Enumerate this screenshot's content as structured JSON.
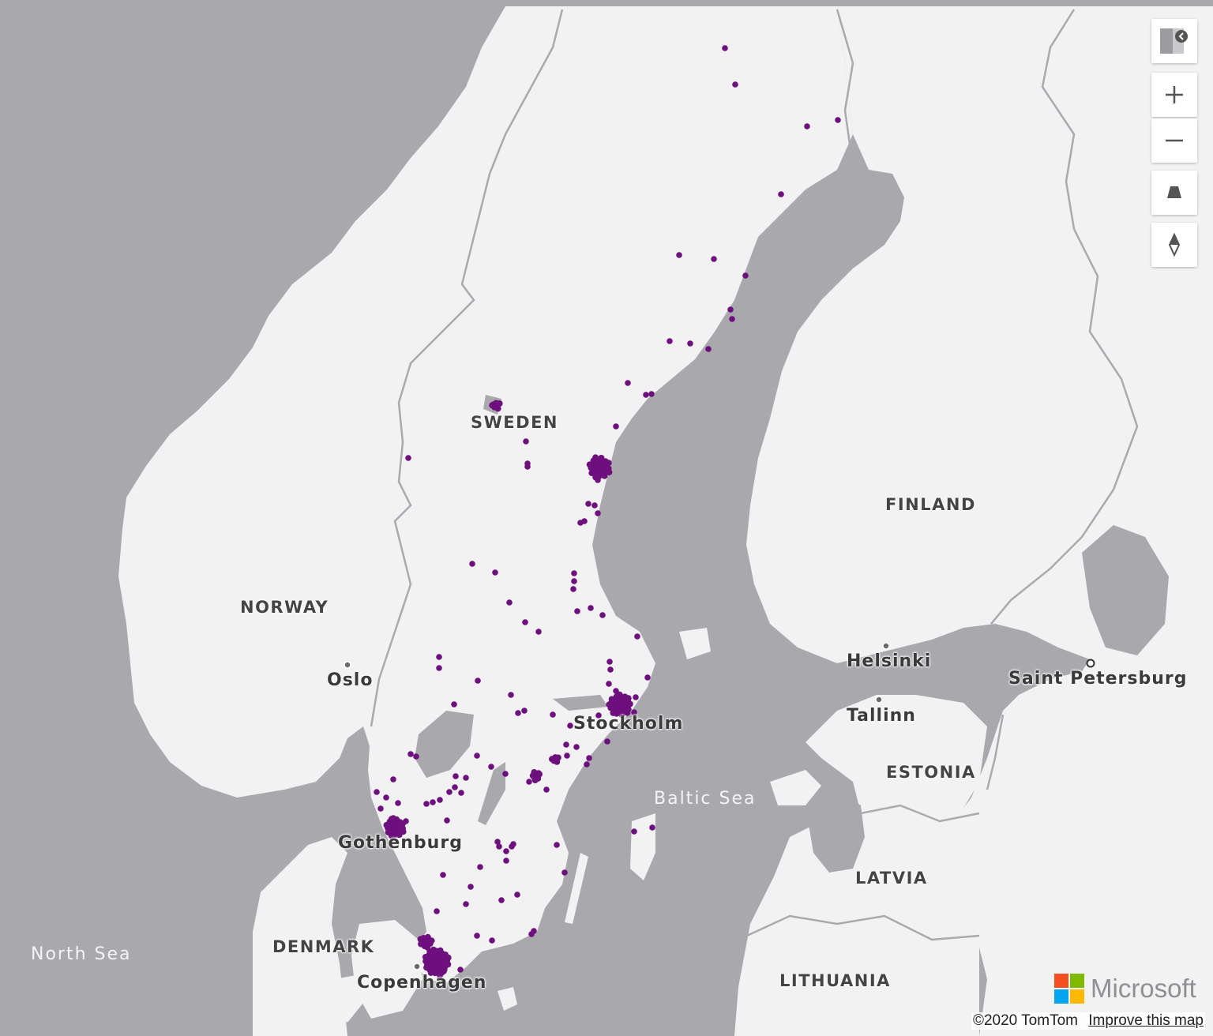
{
  "map": {
    "labels": {
      "sweden": "SWEDEN",
      "norway": "NORWAY",
      "finland": "FINLAND",
      "denmark": "DENMARK",
      "estonia": "ESTONIA",
      "latvia": "LATVIA",
      "lithuania": "LITHUANIA",
      "oslo": "Oslo",
      "stockholm": "Stockholm",
      "gothenburg": "Gothenburg",
      "copenhagen": "Copenhagen",
      "helsinki": "Helsinki",
      "tallinn": "Tallinn",
      "saint_petersburg": "Saint Petersburg",
      "north_sea": "North Sea",
      "baltic_sea": "Baltic Sea"
    },
    "colors": {
      "water": "#a8a8ad",
      "land": "#f2f2f3",
      "border": "#a9a9ae",
      "marker": "#6e0f7e"
    }
  },
  "controls": {
    "style_picker_icon": "chevron-left-icon",
    "zoom_in_icon": "plus-icon",
    "zoom_out_icon": "minus-icon",
    "pitch_icon": "trapezoid-icon",
    "compass_icon": "compass-icon"
  },
  "branding": {
    "logo_text": "Microsoft",
    "logo_colors": [
      "#f25022",
      "#7fba00",
      "#00a4ef",
      "#ffb900"
    ]
  },
  "attribution": {
    "copyright": "©2020 TomTom",
    "improve_link": "Improve this map"
  }
}
